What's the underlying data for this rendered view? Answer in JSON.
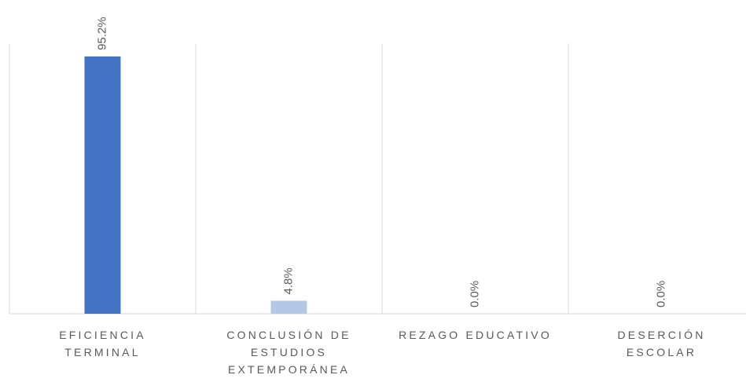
{
  "chart_data": {
    "type": "bar",
    "categories": [
      "EFICIENCIA TERMINAL",
      "CONCLUSIÓN DE ESTUDIOS EXTEMPORÁNEA",
      "REZAGO EDUCATIVO",
      "DESERCIÓN ESCOLAR"
    ],
    "values": [
      95.2,
      4.8,
      0,
      0
    ],
    "value_labels": [
      "95.2%",
      "4.8%",
      "0.0%",
      "0.0%"
    ],
    "colors": [
      "#4472c4",
      "#b4c7e7",
      "#4472c4",
      "#4472c4"
    ],
    "ylim": [
      0,
      100
    ]
  }
}
